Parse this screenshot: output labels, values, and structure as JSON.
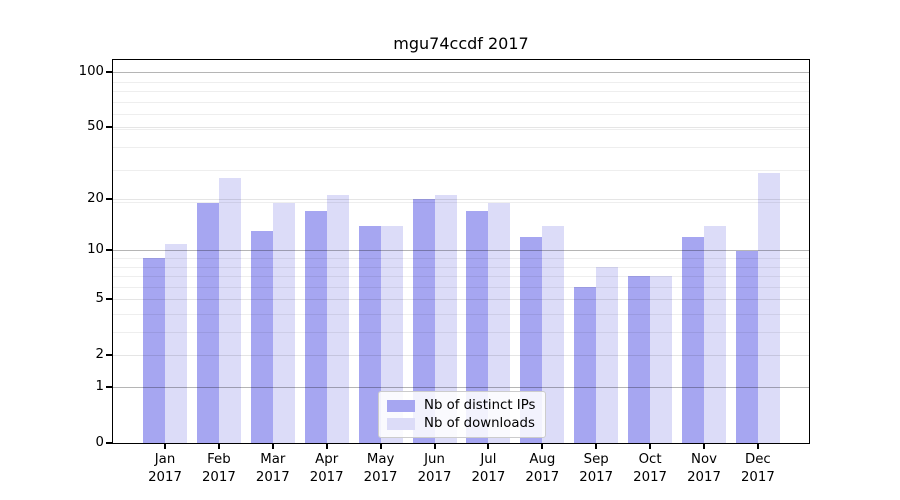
{
  "title": "mgu74ccdf 2017",
  "chart_data": {
    "type": "bar",
    "title": "mgu74ccdf 2017",
    "categories": [
      "Jan",
      "Feb",
      "Mar",
      "Apr",
      "May",
      "Jun",
      "Jul",
      "Aug",
      "Sep",
      "Oct",
      "Nov",
      "Dec"
    ],
    "category_year": "2017",
    "series": [
      {
        "name": "Nb of distinct IPs",
        "color": "#a6a6f1",
        "values": [
          9,
          19,
          13,
          17,
          14,
          20,
          17,
          12,
          6,
          7,
          12,
          10
        ]
      },
      {
        "name": "Nb of downloads",
        "color": "#dcdcf8",
        "values": [
          11,
          26,
          19,
          21,
          14,
          21,
          19,
          14,
          8,
          7,
          14,
          28
        ]
      }
    ],
    "xlabel": "",
    "ylabel": "",
    "y_scale": "log1p",
    "y_ticks": [
      0,
      1,
      2,
      5,
      10,
      20,
      50,
      100
    ],
    "y_tick_labels": [
      "0",
      "1",
      "2",
      "5",
      "10",
      "20",
      "50",
      "100"
    ],
    "y_emphasized_gridlines": [
      1,
      10,
      100
    ],
    "y_minor_gridlines": [
      3,
      4,
      6,
      7,
      8,
      9,
      19,
      29,
      39,
      49,
      59,
      69,
      79,
      89
    ],
    "ylim": [
      0,
      117
    ],
    "grid": true,
    "legend": {
      "position": "lower center",
      "border_color": "#cccccc"
    }
  },
  "colors": {
    "background": "#ffffff",
    "bar_dark": "#a6a6f1",
    "bar_light": "#dcdcf8",
    "emphasized_gridline": "#b4b4b4",
    "light_gridline": "#e6e6e6",
    "axis": "#000000"
  }
}
